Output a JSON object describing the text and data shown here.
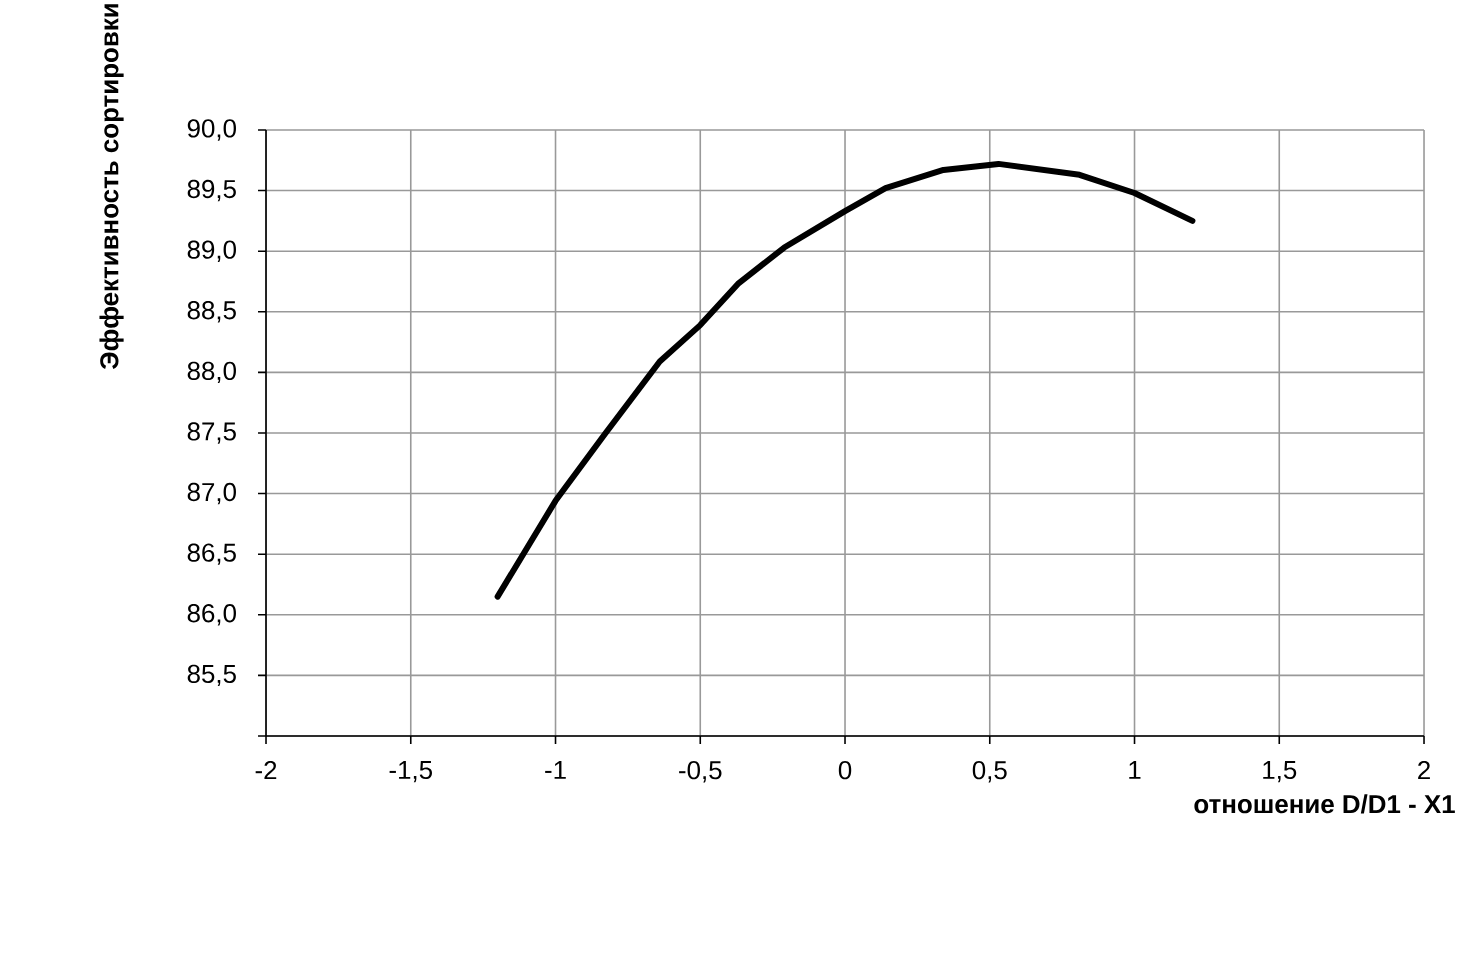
{
  "chart_data": {
    "type": "line",
    "xlabel": "отношение D/D1 - X1",
    "ylabel": "Эффективность сортировки",
    "x": [
      -1.2,
      -1.0,
      -0.83,
      -0.64,
      -0.5,
      -0.37,
      -0.21,
      0.0,
      0.14,
      0.34,
      0.53,
      0.81,
      1.0,
      1.2
    ],
    "values": [
      86.15,
      86.94,
      87.49,
      88.09,
      88.39,
      88.73,
      89.03,
      89.33,
      89.52,
      89.67,
      89.72,
      89.63,
      89.48,
      89.25
    ],
    "color": "#000000",
    "xlim": [
      -2,
      2
    ],
    "ylim": [
      85,
      90
    ],
    "xticks": [
      {
        "value": -2,
        "label": "-2"
      },
      {
        "value": -1.5,
        "label": "-1,5"
      },
      {
        "value": -1,
        "label": "-1"
      },
      {
        "value": -0.5,
        "label": "-0,5"
      },
      {
        "value": 0,
        "label": "0"
      },
      {
        "value": 0.5,
        "label": "0,5"
      },
      {
        "value": 1,
        "label": "1"
      },
      {
        "value": 1.5,
        "label": "1,5"
      },
      {
        "value": 2,
        "label": "2"
      }
    ],
    "yticks": [
      {
        "value": 85,
        "label": null
      },
      {
        "value": 85.5,
        "label": "85,5"
      },
      {
        "value": 86,
        "label": "86,0"
      },
      {
        "value": 86.5,
        "label": "86,5"
      },
      {
        "value": 87,
        "label": "87,0"
      },
      {
        "value": 87.5,
        "label": "87,5"
      },
      {
        "value": 88,
        "label": "88,0"
      },
      {
        "value": 88.5,
        "label": "88,5"
      },
      {
        "value": 89,
        "label": "89,0"
      },
      {
        "value": 89.5,
        "label": "89,5"
      },
      {
        "value": 90,
        "label": "90,0"
      }
    ],
    "grid": true,
    "marker": "none",
    "line_style": "solid"
  }
}
